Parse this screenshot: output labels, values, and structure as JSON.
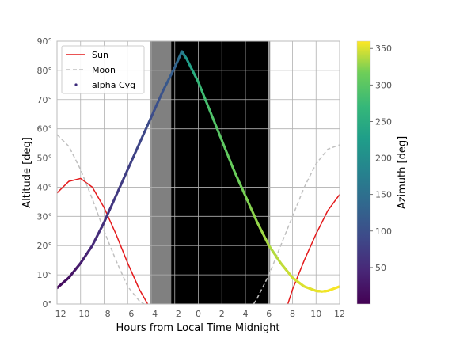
{
  "chart_data": {
    "type": "line",
    "xlabel": "Hours from Local Time Midnight",
    "ylabel": "Altitude [deg]",
    "xlim": [
      -12,
      12
    ],
    "ylim": [
      0,
      90
    ],
    "x_ticks": [
      -12,
      -10,
      -8,
      -6,
      -4,
      -2,
      0,
      2,
      4,
      6,
      8,
      10,
      12
    ],
    "x_tick_labels": [
      "−12",
      "−10",
      "−8",
      "−6",
      "−4",
      "−2",
      "0",
      "2",
      "4",
      "6",
      "8",
      "10",
      "12"
    ],
    "y_ticks": [
      0,
      10,
      20,
      30,
      40,
      50,
      60,
      70,
      80,
      90
    ],
    "y_tick_labels": [
      "0°",
      "10°",
      "20°",
      "30°",
      "40°",
      "50°",
      "60°",
      "70°",
      "80°",
      "90°"
    ],
    "grid": true,
    "legend": {
      "placement": "top-left",
      "entries": [
        "Sun",
        "Moon",
        "alpha Cyg"
      ]
    },
    "night_shading": [
      {
        "from": -4.1,
        "to": 6.1,
        "level": "twilight",
        "color": "#808080"
      },
      {
        "from": -2.3,
        "to": 5.9,
        "level": "astronomical night",
        "color": "#000000"
      }
    ],
    "series": [
      {
        "name": "Sun",
        "style": "solid",
        "color": "#e41a1c",
        "segments": [
          {
            "x": [
              -12,
              -11,
              -10,
              -9,
              -8,
              -7,
              -6,
              -5,
              -4.3
            ],
            "y": [
              38,
              42,
              43,
              40,
              33,
              24,
              14,
              5,
              0
            ]
          },
          {
            "x": [
              7.6,
              8,
              9,
              10,
              11,
              12
            ],
            "y": [
              0,
              5,
              15,
              24,
              32,
              37.5
            ]
          }
        ]
      },
      {
        "name": "Moon",
        "style": "dashed",
        "color": "#c0c0c0",
        "segments": [
          {
            "x": [
              -12,
              -11,
              -10,
              -9,
              -8,
              -7,
              -6,
              -5,
              -4.6
            ],
            "y": [
              58,
              54,
              46,
              36,
              25,
              15,
              6,
              1,
              0
            ]
          },
          {
            "x": [
              4.7,
              5,
              6,
              7,
              8,
              9,
              10,
              11,
              12
            ],
            "y": [
              0,
              2,
              10,
              20,
              30,
              40,
              48,
              53,
              54.5
            ]
          }
        ]
      },
      {
        "name": "alpha Cyg",
        "style": "scatter",
        "colored_by": "azimuth",
        "x": [
          -12,
          -11,
          -10,
          -9,
          -8,
          -7,
          -6,
          -5,
          -4,
          -3,
          -2,
          -1.4,
          -1,
          0,
          1,
          2,
          3,
          4,
          5,
          6,
          7,
          8,
          9,
          10,
          10.5,
          11,
          12
        ],
        "y": [
          5.5,
          9,
          14,
          20,
          28,
          37,
          46,
          55,
          64,
          73,
          81,
          86.5,
          84,
          76,
          66,
          56,
          46,
          37,
          28,
          20,
          14,
          9,
          6,
          4.5,
          4.3,
          4.5,
          6
        ],
        "azimuth": [
          10,
          20,
          35,
          50,
          60,
          70,
          78,
          86,
          95,
          105,
          125,
          160,
          215,
          270,
          290,
          302,
          312,
          320,
          328,
          335,
          341,
          346,
          350,
          353,
          355,
          357,
          359
        ]
      }
    ],
    "colorbar": {
      "label": "Azimuth [deg]",
      "range": [
        0,
        360
      ],
      "ticks": [
        50,
        100,
        150,
        200,
        250,
        300,
        350
      ],
      "tick_labels": [
        "50",
        "100",
        "150",
        "200",
        "250",
        "300",
        "350"
      ],
      "colormap": "viridis"
    }
  }
}
